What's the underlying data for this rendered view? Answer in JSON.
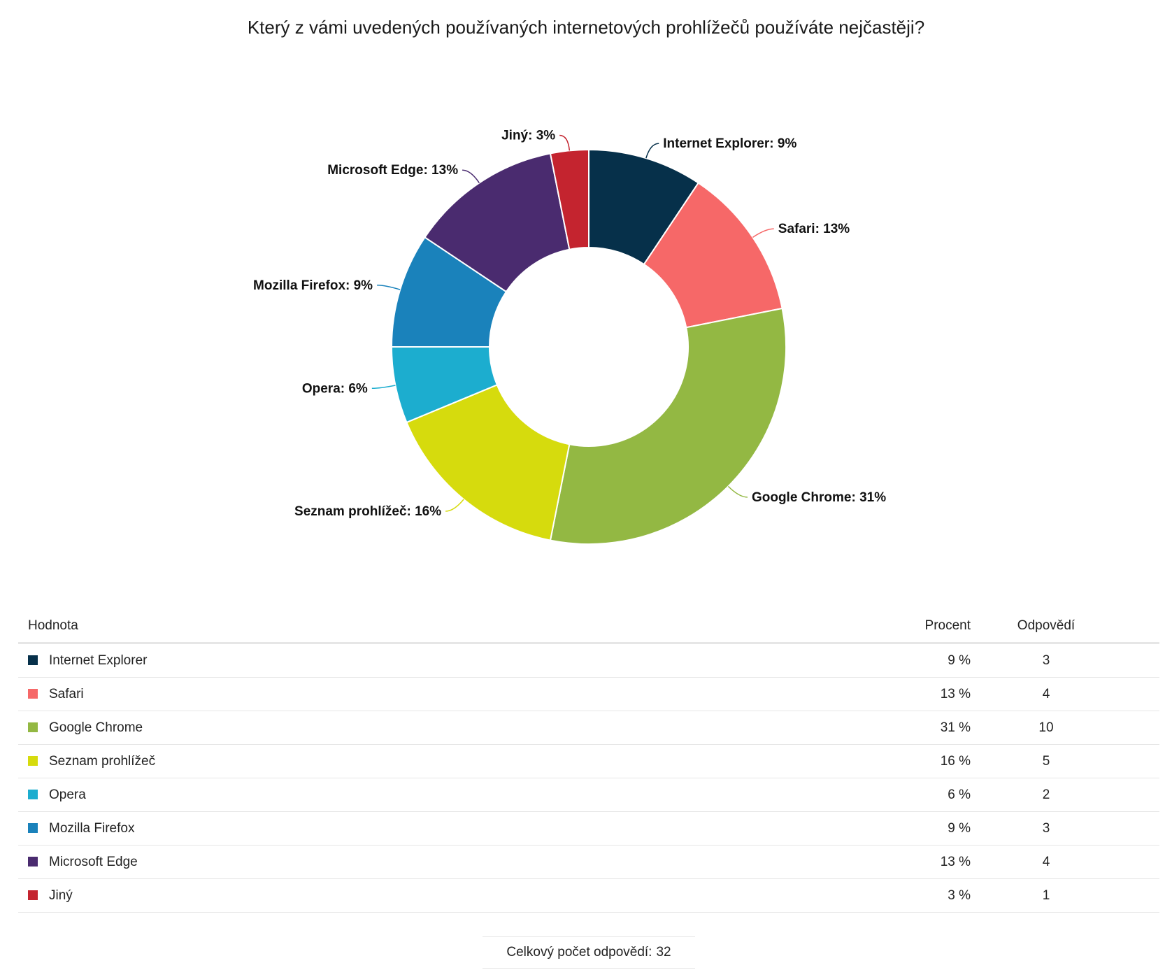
{
  "title": "Který z vámi uvedených používaných internetových prohlížečů používáte nejčastěji?",
  "chart_data": {
    "type": "pie",
    "variant": "donut",
    "categories": [
      "Internet Explorer",
      "Safari",
      "Google Chrome",
      "Seznam prohlížeč",
      "Opera",
      "Mozilla Firefox",
      "Microsoft Edge",
      "Jiný"
    ],
    "values": [
      3,
      4,
      10,
      5,
      2,
      3,
      4,
      1
    ],
    "labels": [
      "Internet Explorer: 9%",
      "Safari: 13%",
      "Google Chrome: 31%",
      "Seznam prohlížeč: 16%",
      "Opera: 6%",
      "Mozilla Firefox: 9%",
      "Microsoft Edge: 13%",
      "Jiný: 3%"
    ],
    "colors": [
      "#06304a",
      "#f66868",
      "#93b843",
      "#d6db0d",
      "#1cadcf",
      "#1a82bb",
      "#4a2b6f",
      "#c4242f"
    ]
  },
  "table": {
    "headers": {
      "value": "Hodnota",
      "percent": "Procent",
      "count": "Odpovědí"
    },
    "rows": [
      {
        "label": "Internet Explorer",
        "percent": "9 %",
        "count": "3"
      },
      {
        "label": "Safari",
        "percent": "13 %",
        "count": "4"
      },
      {
        "label": "Google Chrome",
        "percent": "31 %",
        "count": "10"
      },
      {
        "label": "Seznam prohlížeč",
        "percent": "16 %",
        "count": "5"
      },
      {
        "label": "Opera",
        "percent": "6 %",
        "count": "2"
      },
      {
        "label": "Mozilla Firefox",
        "percent": "9 %",
        "count": "3"
      },
      {
        "label": "Microsoft Edge",
        "percent": "13 %",
        "count": "4"
      },
      {
        "label": "Jiný",
        "percent": "3 %",
        "count": "1"
      }
    ]
  },
  "total": {
    "label": "Celkový počet odpovědí:",
    "value": "32"
  }
}
